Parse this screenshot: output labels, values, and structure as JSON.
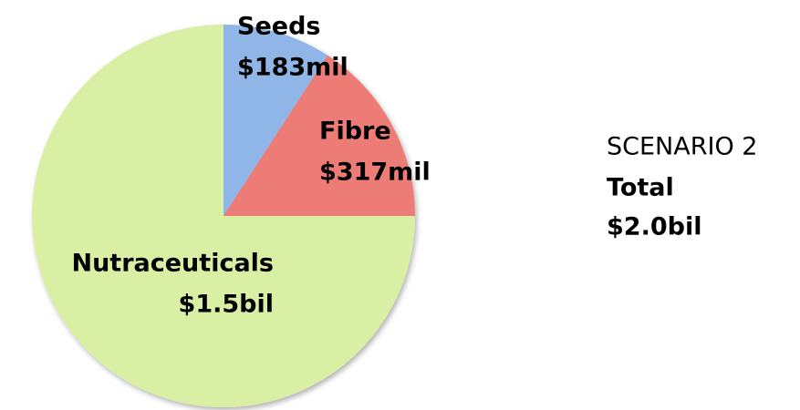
{
  "chart_data": {
    "type": "pie",
    "categories": [
      "Seeds",
      "Fibre",
      "Nutraceuticals"
    ],
    "values": [
      183,
      317,
      1500
    ],
    "value_labels": [
      "$183mil",
      "$317mil",
      "$1.5bil"
    ],
    "colors": [
      "#8fb6e6",
      "#ec7b74",
      "#d9efa4"
    ],
    "annotations": [
      "SCENARIO 2",
      "Total",
      "$2.0bil"
    ]
  }
}
